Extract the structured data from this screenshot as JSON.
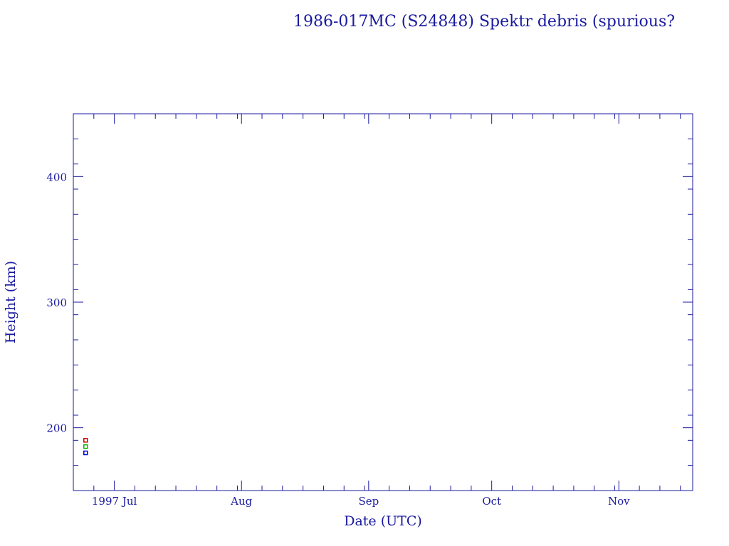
{
  "chart_data": {
    "type": "scatter",
    "title": "1986-017MC (S24848) Spektr debris (spurious?",
    "xlabel": "Date (UTC)",
    "ylabel": "Height (km)",
    "ylim": [
      150,
      450
    ],
    "y_ticks": [
      200,
      300,
      400
    ],
    "y_tick_labels": [
      "200",
      "300",
      "400"
    ],
    "xlim": [
      "1997-06-21",
      "1997-11-19"
    ],
    "x_ticks": [
      "1997-07-01",
      "1997-08-01",
      "1997-09-01",
      "1997-10-01",
      "1997-11-01"
    ],
    "x_tick_labels": [
      "1997 Jul",
      "Aug",
      "Sep",
      "Oct",
      "Nov"
    ],
    "grid": false,
    "colors": {
      "axis": "#1a1aa0"
    },
    "series": [
      {
        "color": "#cc0000",
        "points": [
          {
            "x": "1997-06-24",
            "y": 190
          }
        ]
      },
      {
        "color": "#00bb00",
        "points": [
          {
            "x": "1997-06-24",
            "y": 185
          }
        ]
      },
      {
        "color": "#0000cc",
        "points": [
          {
            "x": "1997-06-24",
            "y": 180
          }
        ]
      }
    ]
  }
}
